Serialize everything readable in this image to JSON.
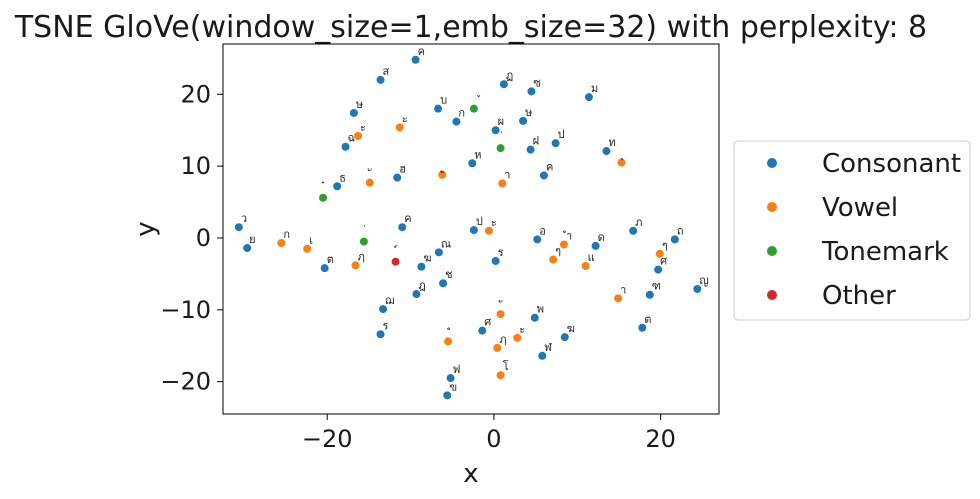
{
  "chart_data": {
    "type": "scatter",
    "title": "TSNE GloVe(window_size=1,emb_size=32) with perplexity: 8",
    "xlabel": "x",
    "ylabel": "y",
    "xlim": [
      -32.5,
      27
    ],
    "ylim": [
      -24.5,
      27
    ],
    "xticks": [
      -20,
      0,
      20
    ],
    "yticks": [
      -20,
      -10,
      0,
      10,
      20
    ],
    "xtick_labels": [
      "−20",
      "0",
      "20"
    ],
    "ytick_labels": [
      "−20",
      "−10",
      "0",
      "10",
      "20"
    ],
    "grid": false,
    "legend_position": "right",
    "series": [
      {
        "name": "Consonant",
        "color": "#1f77b4",
        "points": [
          {
            "x": -9.4,
            "y": 24.8,
            "label": "ค"
          },
          {
            "x": -13.6,
            "y": 22.0,
            "label": "ส"
          },
          {
            "x": 1.2,
            "y": 21.4,
            "label": "ฏ"
          },
          {
            "x": 4.5,
            "y": 20.4,
            "label": "ซ"
          },
          {
            "x": 11.4,
            "y": 19.6,
            "label": "ม"
          },
          {
            "x": -16.8,
            "y": 17.4,
            "label": "ษ"
          },
          {
            "x": -6.7,
            "y": 18.0,
            "label": "บ"
          },
          {
            "x": -4.5,
            "y": 16.2,
            "label": "ก"
          },
          {
            "x": 3.5,
            "y": 16.3,
            "label": "ษ"
          },
          {
            "x": 0.2,
            "y": 15.0,
            "label": "ผ"
          },
          {
            "x": -17.8,
            "y": 12.7,
            "label": "ฉ"
          },
          {
            "x": 4.4,
            "y": 12.3,
            "label": "ฝ"
          },
          {
            "x": 7.4,
            "y": 13.2,
            "label": "ป"
          },
          {
            "x": 13.5,
            "y": 12.1,
            "label": "ท"
          },
          {
            "x": -2.6,
            "y": 10.4,
            "label": "ห"
          },
          {
            "x": 6.0,
            "y": 8.7,
            "label": "ค"
          },
          {
            "x": -11.6,
            "y": 8.4,
            "label": "ฮ"
          },
          {
            "x": -18.8,
            "y": 7.2,
            "label": "ธ"
          },
          {
            "x": -30.6,
            "y": 1.5,
            "label": "ว"
          },
          {
            "x": -11.0,
            "y": 1.5,
            "label": "ค"
          },
          {
            "x": -2.4,
            "y": 1.1,
            "label": "ป"
          },
          {
            "x": 5.2,
            "y": -0.2,
            "label": "อ"
          },
          {
            "x": 16.7,
            "y": 1.0,
            "label": "ภ"
          },
          {
            "x": 21.7,
            "y": -0.2,
            "label": "ถ"
          },
          {
            "x": -29.6,
            "y": -1.4,
            "label": "ย"
          },
          {
            "x": -6.6,
            "y": -2.0,
            "label": "ณ"
          },
          {
            "x": 12.2,
            "y": -1.1,
            "label": "ด"
          },
          {
            "x": 0.2,
            "y": -3.2,
            "label": "ร"
          },
          {
            "x": -20.3,
            "y": -4.2,
            "label": "ต"
          },
          {
            "x": -8.7,
            "y": -4.0,
            "label": "ฆ"
          },
          {
            "x": 19.7,
            "y": -4.4,
            "label": "ศ"
          },
          {
            "x": -6.1,
            "y": -6.3,
            "label": "ช"
          },
          {
            "x": -9.3,
            "y": -7.8,
            "label": "ฎ"
          },
          {
            "x": 18.7,
            "y": -7.9,
            "label": "ฑ"
          },
          {
            "x": 24.4,
            "y": -7.1,
            "label": "ญ"
          },
          {
            "x": -13.3,
            "y": -9.9,
            "label": "ฌ"
          },
          {
            "x": 4.9,
            "y": -11.1,
            "label": "พ"
          },
          {
            "x": -13.6,
            "y": -13.4,
            "label": "ร"
          },
          {
            "x": -1.4,
            "y": -12.9,
            "label": "ศ"
          },
          {
            "x": 8.5,
            "y": -13.8,
            "label": "ฆ"
          },
          {
            "x": 17.8,
            "y": -12.5,
            "label": "ต"
          },
          {
            "x": 5.8,
            "y": -16.4,
            "label": "ฬ"
          },
          {
            "x": -5.2,
            "y": -19.5,
            "label": "ฟ"
          },
          {
            "x": -5.6,
            "y": -21.9,
            "label": "ฃ"
          }
        ]
      },
      {
        "name": "Vowel",
        "color": "#ff7f0e",
        "points": [
          {
            "x": -16.3,
            "y": 14.2,
            "label": "ะ"
          },
          {
            "x": -11.3,
            "y": 15.4,
            "label": "ะ"
          },
          {
            "x": 15.3,
            "y": 10.5,
            "label": "ุ"
          },
          {
            "x": -6.2,
            "y": 8.8,
            "label": "ู"
          },
          {
            "x": 1.0,
            "y": 7.6,
            "label": "า"
          },
          {
            "x": -14.9,
            "y": 7.7,
            "label": "ั"
          },
          {
            "x": -25.5,
            "y": -0.7,
            "label": "ก"
          },
          {
            "x": -22.4,
            "y": -1.5,
            "label": "เ"
          },
          {
            "x": -0.6,
            "y": 1.0,
            "label": "ะ"
          },
          {
            "x": 8.4,
            "y": -0.9,
            "label": "ำ"
          },
          {
            "x": 19.9,
            "y": -2.2,
            "label": "ๆ"
          },
          {
            "x": -16.6,
            "y": -3.8,
            "label": "ฦ"
          },
          {
            "x": 7.1,
            "y": -3.0,
            "label": "ๆ"
          },
          {
            "x": 11.0,
            "y": -3.9,
            "label": "แ"
          },
          {
            "x": 14.9,
            "y": -8.4,
            "label": "า"
          },
          {
            "x": 0.8,
            "y": -10.6,
            "label": "ั"
          },
          {
            "x": -5.5,
            "y": -14.4,
            "label": "ํ"
          },
          {
            "x": 2.8,
            "y": -13.9,
            "label": "ะ"
          },
          {
            "x": 0.4,
            "y": -15.3,
            "label": "ฦ"
          },
          {
            "x": 0.8,
            "y": -19.1,
            "label": "โ"
          }
        ]
      },
      {
        "name": "Tonemark",
        "color": "#2ca02c",
        "points": [
          {
            "x": -2.4,
            "y": 18.0,
            "label": "ˇ"
          },
          {
            "x": 0.8,
            "y": 12.5,
            "label": "่"
          },
          {
            "x": -20.5,
            "y": 5.6,
            "label": "๋"
          },
          {
            "x": -15.6,
            "y": -0.5,
            "label": "่"
          }
        ]
      },
      {
        "name": "Other",
        "color": "#d62728",
        "points": [
          {
            "x": -11.8,
            "y": -3.3,
            "label": "์"
          }
        ]
      }
    ]
  }
}
